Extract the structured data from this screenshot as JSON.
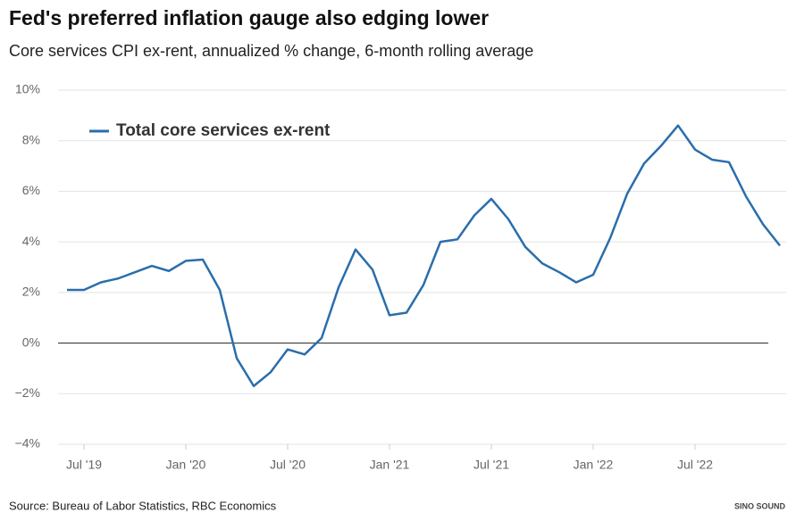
{
  "chart_data": {
    "type": "line",
    "title": "Fed's preferred inflation gauge also edging lower",
    "subtitle": "Core services CPI ex-rent, annualized % change, 6-month rolling average",
    "source": "Source: Bureau of Labor Statistics, RBC Economics",
    "watermark": "SINO SOUND",
    "categories": [
      null,
      "Jul '19",
      null,
      null,
      null,
      null,
      null,
      "Jan '20",
      null,
      null,
      null,
      null,
      null,
      "Jul '20",
      null,
      null,
      null,
      null,
      null,
      "Jan '21",
      null,
      null,
      null,
      null,
      null,
      "Jul '21",
      null,
      null,
      null,
      null,
      null,
      "Jan '22",
      null,
      null,
      null,
      null,
      null,
      "Jul '22",
      null,
      null,
      null,
      null,
      null
    ],
    "series": [
      {
        "name": "Total core services ex-rent",
        "color": "#2a6eab",
        "values": [
          2.1,
          2.1,
          2.4,
          2.55,
          2.8,
          3.05,
          2.85,
          3.25,
          3.3,
          2.1,
          -0.6,
          -1.7,
          -1.15,
          -0.25,
          -0.45,
          0.2,
          2.2,
          3.7,
          2.9,
          1.1,
          1.2,
          2.3,
          4.0,
          4.1,
          5.05,
          5.7,
          4.9,
          3.8,
          3.15,
          2.8,
          2.4,
          2.7,
          4.15,
          5.9,
          7.1,
          7.8,
          8.6,
          7.65,
          7.25,
          7.15,
          5.8,
          4.7,
          3.85
        ]
      }
    ],
    "ylim": [
      -4,
      10
    ],
    "yticks": [
      {
        "value": -4,
        "label": "−4%"
      },
      {
        "value": -2,
        "label": "−2%"
      },
      {
        "value": 0,
        "label": "0%"
      },
      {
        "value": 2,
        "label": "2%"
      },
      {
        "value": 4,
        "label": "4%"
      },
      {
        "value": 6,
        "label": "6%"
      },
      {
        "value": 8,
        "label": "8%"
      },
      {
        "value": 10,
        "label": "10%"
      }
    ],
    "grid": true,
    "legend": "top-left"
  }
}
